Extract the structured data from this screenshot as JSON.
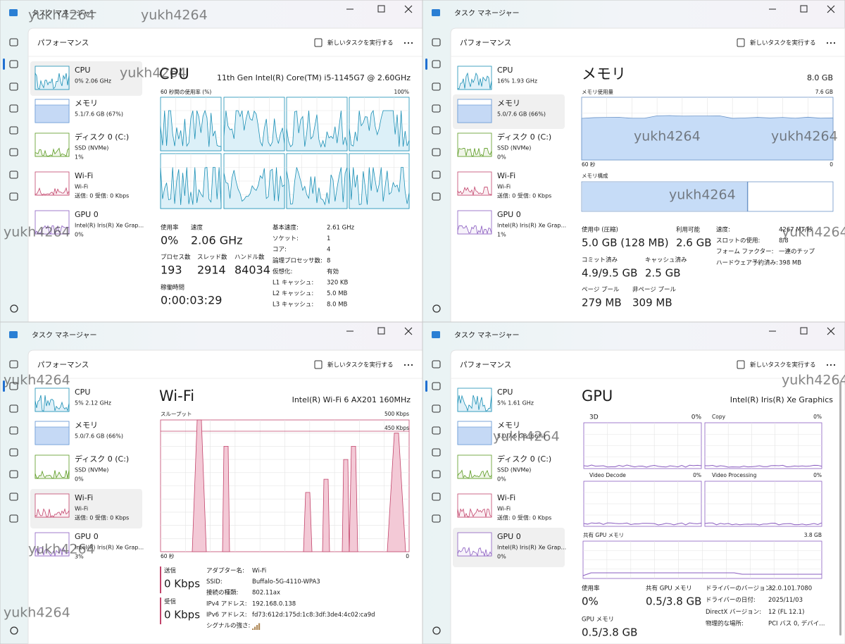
{
  "watermark": "yukh4264",
  "windows": [
    {
      "app_title": "タスク マネージャー",
      "page_title": "パフォーマンス",
      "run_task": "新しいタスクを実行する",
      "sidebar": [
        {
          "name": "CPU",
          "detail": "0%  2.06 GHz",
          "selected": true
        },
        {
          "name": "メモリ",
          "detail": "5.1/7.6 GB (67%)"
        },
        {
          "name": "ディスク 0 (C:)",
          "detail": "SSD (NVMe)",
          "detail2": "1%"
        },
        {
          "name": "Wi-Fi",
          "detail": "Wi-Fi",
          "detail2": "送信: 0 受信: 0 Kbps"
        },
        {
          "name": "GPU 0",
          "detail": "Intel(R) Iris(R) Xe Grap...",
          "detail2": "0%"
        }
      ],
      "heading": "CPU",
      "subheading": "11th Gen Intel(R) Core(TM) i5-1145G7 @ 2.60GHz",
      "graph_labels": [
        "60 秒間の使用率 (%)",
        "100%"
      ],
      "stats": [
        {
          "label": "使用率",
          "value": "0%"
        },
        {
          "label": "速度",
          "value": "2.06 GHz"
        },
        {
          "label": "プロセス数",
          "value": "193"
        },
        {
          "label": "スレッド数",
          "value": "2914"
        },
        {
          "label": "ハンドル数",
          "value": "84034"
        },
        {
          "label": "稼働時間",
          "value": "0:00:03:29"
        }
      ],
      "specs": [
        {
          "label": "基本速度:",
          "value": "2.61 GHz"
        },
        {
          "label": "ソケット:",
          "value": "1"
        },
        {
          "label": "コア:",
          "value": "4"
        },
        {
          "label": "論理プロセッサ数:",
          "value": "8"
        },
        {
          "label": "仮想化:",
          "value": "有効"
        },
        {
          "label": "L1 キャッシュ:",
          "value": "320 KB"
        },
        {
          "label": "L2 キャッシュ:",
          "value": "5.0 MB"
        },
        {
          "label": "L3 キャッシュ:",
          "value": "8.0 MB"
        }
      ]
    },
    {
      "app_title": "タスク マネージャー",
      "page_title": "パフォーマンス",
      "run_task": "新しいタスクを実行する",
      "sidebar": [
        {
          "name": "CPU",
          "detail": "16%  1.93 GHz"
        },
        {
          "name": "メモリ",
          "detail": "5.0/7.6 GB (66%)",
          "selected": true
        },
        {
          "name": "ディスク 0 (C:)",
          "detail": "SSD (NVMe)",
          "detail2": "0%"
        },
        {
          "name": "Wi-Fi",
          "detail": "Wi-Fi",
          "detail2": "送信: 0 受信: 0 Kbps"
        },
        {
          "name": "GPU 0",
          "detail": "Intel(R) Iris(R) Xe Grap...",
          "detail2": "1%"
        }
      ],
      "heading": "メモリ",
      "subheading": "8.0 GB",
      "graph_labels": [
        "メモリ使用量",
        "7.6 GB",
        "60 秒",
        "0",
        "メモリ構成"
      ],
      "stats": [
        {
          "label": "使用中 (圧縮)",
          "value": "5.0 GB (128 MB)"
        },
        {
          "label": "利用可能",
          "value": "2.6 GB"
        },
        {
          "label": "コミット済み",
          "value": "4.9/9.5 GB"
        },
        {
          "label": "キャッシュ済み",
          "value": "2.5 GB"
        },
        {
          "label": "ページ プール",
          "value": "279 MB"
        },
        {
          "label": "非ページ プール",
          "value": "309 MB"
        }
      ],
      "specs": [
        {
          "label": "速度:",
          "value": "4267 MT/秒"
        },
        {
          "label": "スロットの使用:",
          "value": "8/8"
        },
        {
          "label": "フォーム ファクター:",
          "value": "一連のチップ"
        },
        {
          "label": "ハードウェア予約済み:",
          "value": "398 MB"
        }
      ]
    },
    {
      "app_title": "タスク マネージャー",
      "page_title": "パフォーマンス",
      "run_task": "新しいタスクを実行する",
      "sidebar": [
        {
          "name": "CPU",
          "detail": "5%  2.12 GHz"
        },
        {
          "name": "メモリ",
          "detail": "5.0/7.6 GB (66%)"
        },
        {
          "name": "ディスク 0 (C:)",
          "detail": "SSD (NVMe)",
          "detail2": "0%"
        },
        {
          "name": "Wi-Fi",
          "detail": "Wi-Fi",
          "detail2": "送信: 0 受信: 0 Kbps",
          "selected": true
        },
        {
          "name": "GPU 0",
          "detail": "Intel(R) Iris(R) Xe Grap...",
          "detail2": "3%"
        }
      ],
      "heading": "Wi-Fi",
      "subheading": "Intel(R) Wi-Fi 6 AX201 160MHz",
      "graph_labels": [
        "スループット",
        "500 Kbps",
        "450 Kbps",
        "60 秒",
        "0"
      ],
      "stats": [
        {
          "label": "送信",
          "value": "0 Kbps"
        },
        {
          "label": "受信",
          "value": "0 Kbps"
        }
      ],
      "specs": [
        {
          "label": "アダプター名:",
          "value": "Wi-Fi"
        },
        {
          "label": "SSID:",
          "value": "Buffalo-5G-4110-WPA3"
        },
        {
          "label": "接続の種類:",
          "value": "802.11ax"
        },
        {
          "label": "IPv4 アドレス:",
          "value": "192.168.0.138"
        },
        {
          "label": "IPv6 アドレス:",
          "value": "fd73:612d:175d:1c8:3df:3de4:4c02:ca9d"
        },
        {
          "label": "シグナルの強さ:"
        }
      ]
    },
    {
      "app_title": "タスク マネージャー",
      "page_title": "パフォーマンス",
      "run_task": "新しいタスクを実行する",
      "sidebar": [
        {
          "name": "CPU",
          "detail": "5%  1.61 GHz"
        },
        {
          "name": "メモリ",
          "detail": "5.0/7.6 GB (66%)"
        },
        {
          "name": "ディスク 0 (C:)",
          "detail": "SSD (NVMe)",
          "detail2": "0%"
        },
        {
          "name": "Wi-Fi",
          "detail": "Wi-Fi",
          "detail2": "送信: 0 受信: 0 Kbps"
        },
        {
          "name": "GPU 0",
          "detail": "Intel(R) Iris(R) Xe Grap...",
          "detail2": "0%",
          "selected": true
        }
      ],
      "heading": "GPU",
      "subheading": "Intel(R) Iris(R) Xe Graphics",
      "graph_labels": [
        "3D",
        "0%",
        "Copy",
        "0%",
        "Video Decode",
        "0%",
        "Video Processing",
        "0%",
        "共有 GPU メモリ",
        "3.8 GB"
      ],
      "stats": [
        {
          "label": "使用率",
          "value": "0%"
        },
        {
          "label": "共有 GPU メモリ",
          "value": "0.5/3.8 GB"
        },
        {
          "label": "GPU メモリ",
          "value": "0.5/3.8 GB"
        }
      ],
      "specs": [
        {
          "label": "ドライバーのバージョン:",
          "value": "32.0.101.7080"
        },
        {
          "label": "ドライバーの日付:",
          "value": "2025/11/03"
        },
        {
          "label": "DirectX バージョン:",
          "value": "12 (FL 12.1)"
        },
        {
          "label": "物理的な場所:",
          "value": "PCI バス 0, デバイ..."
        }
      ]
    }
  ]
}
